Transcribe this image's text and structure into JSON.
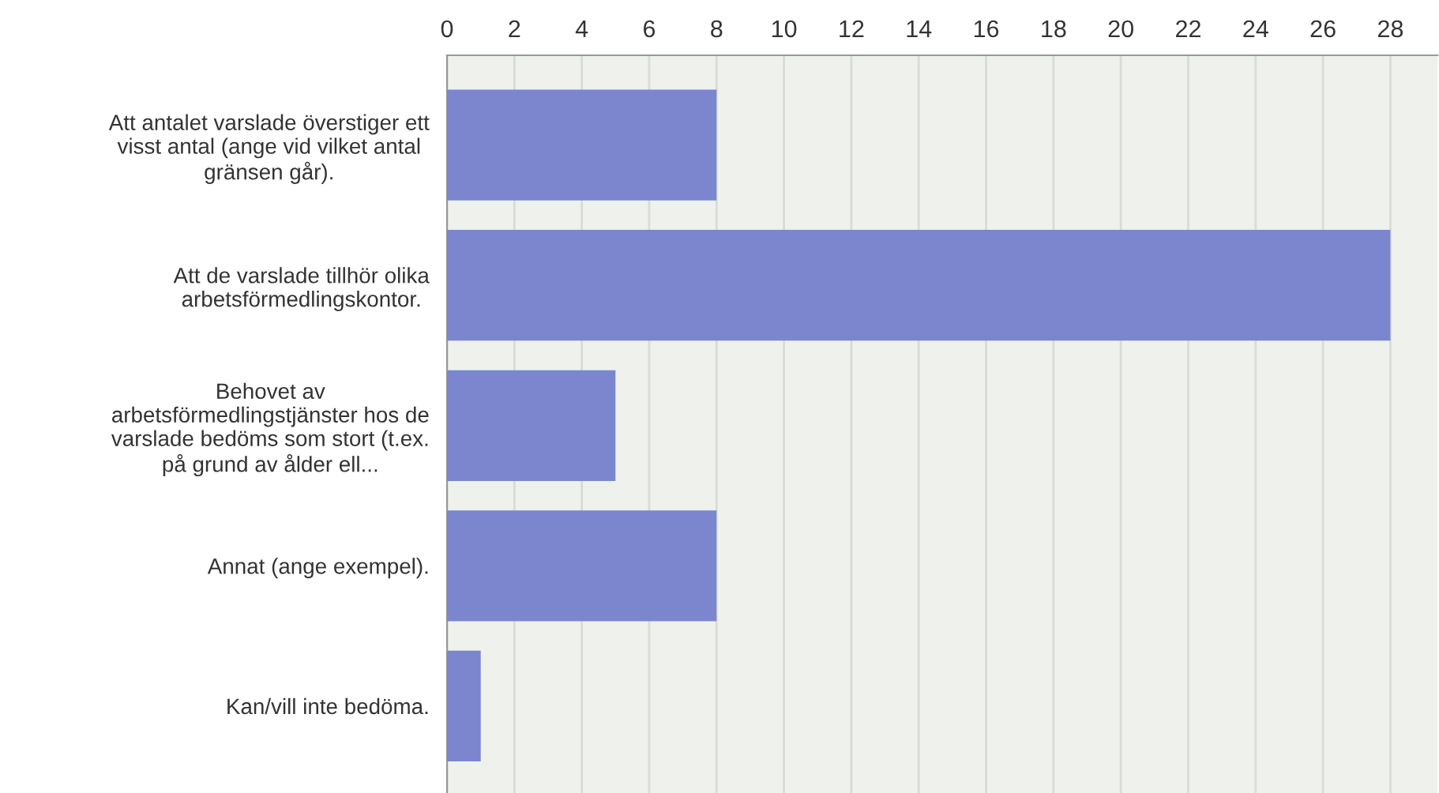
{
  "chart_data": {
    "type": "bar",
    "orientation": "horizontal",
    "categories": [
      "Att antalet varslade överstiger ett\nvisst antal (ange vid vilket antal\ngränsen går).",
      "Att de varslade tillhör olika\narbetsförmedlingskontor.",
      "Behovet av\narbetsförmedlingstjänster hos de\nvarslade bedöms som stort (t.ex.\npå grund av ålder ell...",
      "Annat (ange exempel).",
      "Kan/vill inte bedöma."
    ],
    "values": [
      8,
      28,
      5,
      8,
      1
    ],
    "color": "#7b86cf",
    "xlim": [
      0,
      29.4
    ],
    "xticks": [
      0,
      2,
      4,
      6,
      8,
      10,
      12,
      14,
      16,
      18,
      20,
      22,
      24,
      26,
      28
    ],
    "grid": "x"
  }
}
